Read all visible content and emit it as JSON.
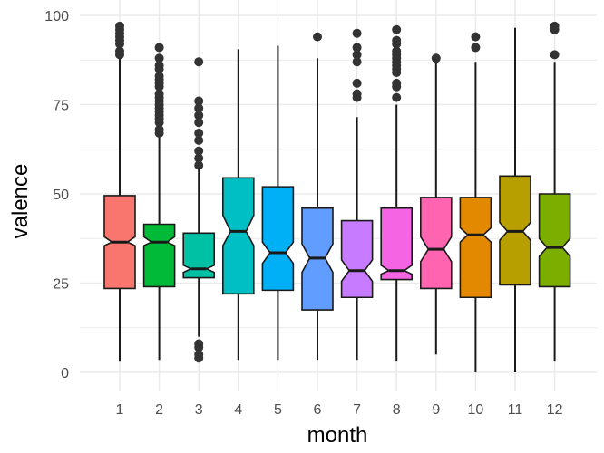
{
  "chart_data": {
    "type": "boxplot",
    "variant": "notched",
    "title": "",
    "xlabel": "month",
    "ylabel": "valence",
    "ylim": [
      0,
      100
    ],
    "yticks": [
      0,
      25,
      50,
      75,
      100
    ],
    "grid": true,
    "legend": "none",
    "categories": [
      "1",
      "2",
      "3",
      "4",
      "5",
      "6",
      "7",
      "8",
      "9",
      "10",
      "11",
      "12"
    ],
    "boxes": [
      {
        "category": "1",
        "color": "#F8766D",
        "min": 3,
        "q1": 23.5,
        "median": 36.5,
        "q3": 49.5,
        "max": 88,
        "notch_low": 35.5,
        "notch_high": 38,
        "outliers": [
          89,
          90,
          92,
          93,
          94,
          95,
          96,
          97
        ]
      },
      {
        "category": "2",
        "color": "#00BA38",
        "min": 3.5,
        "q1": 24,
        "median": 36.5,
        "q3": 41.5,
        "max": 66,
        "notch_low": 35.5,
        "notch_high": 38,
        "outliers": [
          67,
          68,
          70,
          71,
          72,
          73,
          74,
          75,
          76,
          77,
          78,
          80,
          81,
          82,
          83,
          85,
          86,
          88,
          91
        ]
      },
      {
        "category": "3",
        "color": "#00C1A3",
        "min": 10,
        "q1": 26.5,
        "median": 29,
        "q3": 39,
        "max": 57,
        "notch_low": 28,
        "notch_high": 30,
        "outliers": [
          4,
          5,
          7,
          8,
          58,
          60,
          62,
          65,
          67,
          70,
          72,
          74,
          76,
          87
        ]
      },
      {
        "category": "4",
        "color": "#00BFC4",
        "min": 3.5,
        "q1": 22,
        "median": 39.5,
        "q3": 54.5,
        "max": 90.5,
        "notch_low": 35.5,
        "notch_high": 44,
        "outliers": []
      },
      {
        "category": "5",
        "color": "#00B0F6",
        "min": 3.5,
        "q1": 23,
        "median": 33.5,
        "q3": 52,
        "max": 91.5,
        "notch_low": 30.5,
        "notch_high": 36.5,
        "outliers": []
      },
      {
        "category": "6",
        "color": "#619CFF",
        "min": 3.5,
        "q1": 17.5,
        "median": 32,
        "q3": 46,
        "max": 88,
        "notch_low": 28,
        "notch_high": 36,
        "outliers": [
          94
        ]
      },
      {
        "category": "7",
        "color": "#C77CFF",
        "min": 3.5,
        "q1": 21,
        "median": 28.5,
        "q3": 42.5,
        "max": 71.5,
        "notch_low": 25.5,
        "notch_high": 31.5,
        "outliers": [
          77,
          78,
          81,
          87,
          89,
          91,
          95
        ]
      },
      {
        "category": "8",
        "color": "#F564E3",
        "min": 3,
        "q1": 26,
        "median": 28.5,
        "q3": 46,
        "max": 75,
        "notch_low": 27.5,
        "notch_high": 30,
        "outliers": [
          77,
          80,
          81,
          84,
          85,
          86,
          87,
          88,
          89,
          90,
          92,
          93,
          96
        ]
      },
      {
        "category": "9",
        "color": "#FF64B0",
        "min": 5,
        "q1": 23.5,
        "median": 34.5,
        "q3": 49,
        "max": 87,
        "notch_low": 31,
        "notch_high": 38,
        "outliers": [
          88
        ]
      },
      {
        "category": "10",
        "color": "#E38900",
        "min": 0,
        "q1": 21,
        "median": 38.5,
        "q3": 49,
        "max": 87,
        "notch_low": 36.5,
        "notch_high": 40.5,
        "outliers": [
          91,
          94
        ]
      },
      {
        "category": "11",
        "color": "#B79F00",
        "min": 0,
        "q1": 24.5,
        "median": 39.5,
        "q3": 55,
        "max": 96.5,
        "notch_low": 37,
        "notch_high": 42,
        "outliers": []
      },
      {
        "category": "12",
        "color": "#7CAE00",
        "min": 3,
        "q1": 24,
        "median": 35,
        "q3": 50,
        "max": 87,
        "notch_low": 32.5,
        "notch_high": 37.5,
        "outliers": [
          89,
          96,
          97
        ]
      }
    ]
  }
}
